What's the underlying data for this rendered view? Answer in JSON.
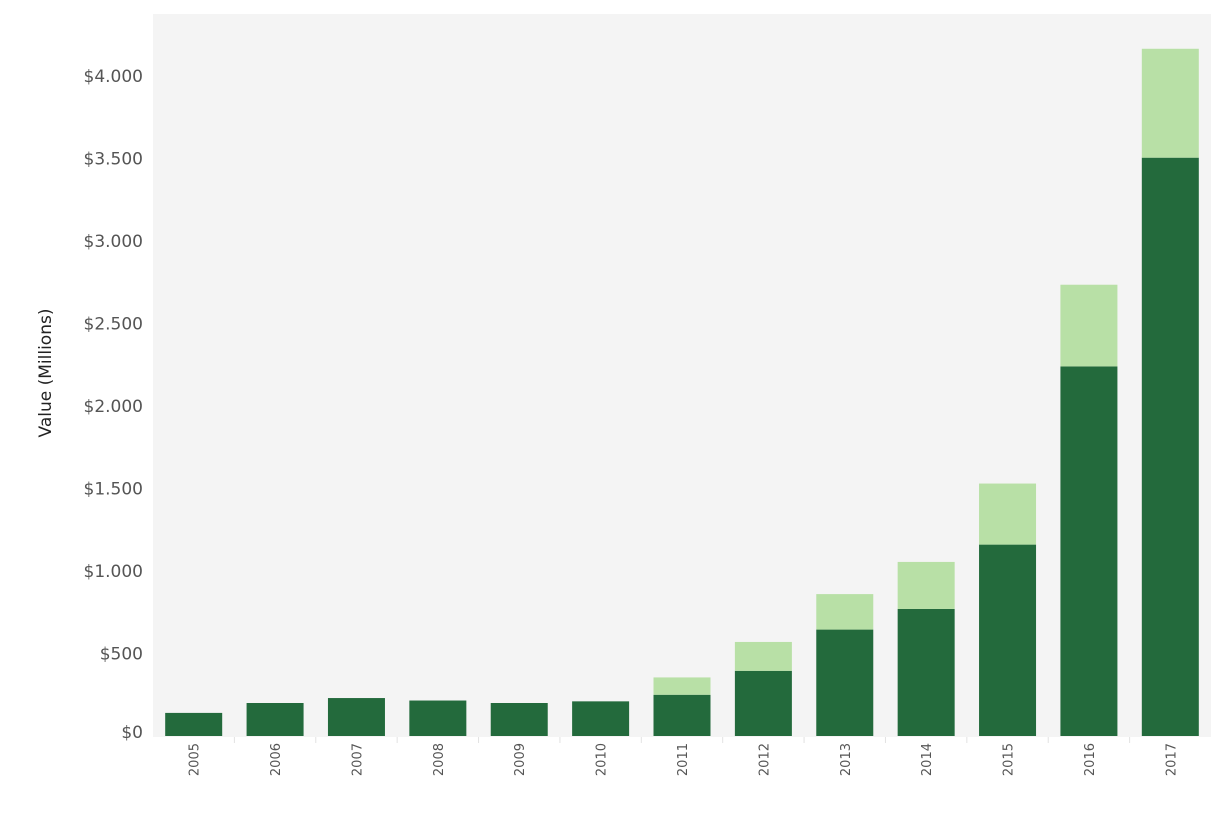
{
  "chart_data": {
    "type": "bar",
    "stacked": true,
    "title": "",
    "xlabel": "",
    "ylabel": "Value (Millions)",
    "ylim": [
      0,
      4350
    ],
    "yticks": [
      0,
      500,
      1000,
      1500,
      2000,
      2500,
      3000,
      3500,
      4000
    ],
    "ytick_labels": [
      "$0",
      "$500",
      "$1.000",
      "$1.500",
      "$2.000",
      "$2.500",
      "$3.000",
      "$3.500",
      "$4.000"
    ],
    "grid": false,
    "legend": "none",
    "categories": [
      "2005",
      "2006",
      "2007",
      "2008",
      "2009",
      "2010",
      "2011",
      "2012",
      "2013",
      "2014",
      "2015",
      "2016",
      "2017"
    ],
    "series": [
      {
        "color": "#236a3c",
        "values": [
          140,
          200,
          230,
          215,
          200,
          210,
          250,
          395,
          645,
          770,
          1160,
          2240,
          3505
        ]
      },
      {
        "color": "#b8e0a6",
        "values": [
          0,
          0,
          0,
          0,
          0,
          0,
          105,
          175,
          215,
          285,
          370,
          495,
          660
        ]
      }
    ]
  }
}
